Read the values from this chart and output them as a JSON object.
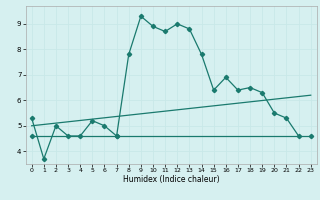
{
  "title": "",
  "xlabel": "Humidex (Indice chaleur)",
  "bg_color": "#d6f0f0",
  "line_color": "#1a7a6e",
  "grid_color": "#c8e8e8",
  "xlim": [
    -0.5,
    23.5
  ],
  "ylim": [
    3.5,
    9.7
  ],
  "yticks": [
    4,
    5,
    6,
    7,
    8,
    9
  ],
  "xticks": [
    0,
    1,
    2,
    3,
    4,
    5,
    6,
    7,
    8,
    9,
    10,
    11,
    12,
    13,
    14,
    15,
    16,
    17,
    18,
    19,
    20,
    21,
    22,
    23
  ],
  "series1_x": [
    0,
    1,
    2,
    3,
    4,
    5,
    6,
    7,
    8,
    9,
    10,
    11,
    12,
    13,
    14,
    15,
    16,
    17,
    18,
    19,
    20,
    21,
    22
  ],
  "series1_y": [
    5.3,
    3.7,
    5.0,
    4.6,
    4.6,
    5.2,
    5.0,
    4.6,
    7.8,
    9.3,
    8.9,
    8.7,
    9.0,
    8.8,
    7.8,
    6.4,
    6.9,
    6.4,
    6.5,
    6.3,
    5.5,
    5.3,
    4.6
  ],
  "series2_x": [
    0,
    7,
    23
  ],
  "series2_y": [
    4.6,
    4.6,
    4.6
  ],
  "series3_x": [
    0,
    23
  ],
  "series3_y": [
    5.0,
    6.2
  ],
  "marker": "D",
  "marker_size": 2.2,
  "linewidth": 0.9
}
